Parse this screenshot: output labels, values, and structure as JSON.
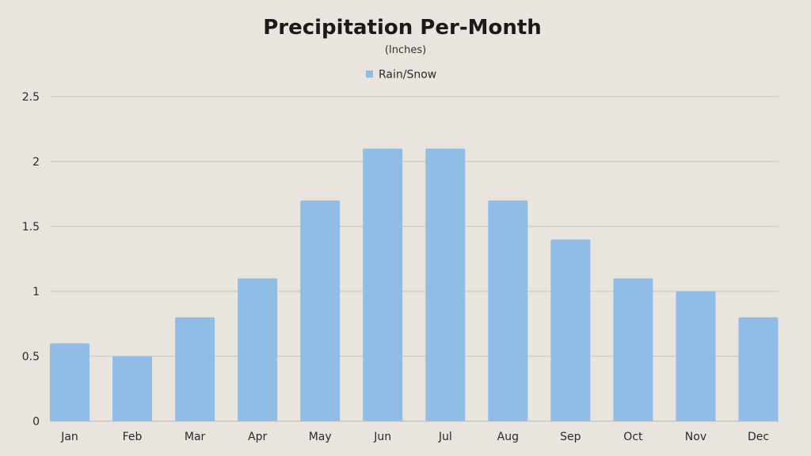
{
  "chart_data": {
    "type": "bar",
    "title": "Precipitation Per-Month",
    "subtitle": "(Inches)",
    "xlabel": "",
    "ylabel": "",
    "categories": [
      "Jan",
      "Feb",
      "Mar",
      "Apr",
      "May",
      "Jun",
      "Jul",
      "Aug",
      "Sep",
      "Oct",
      "Nov",
      "Dec"
    ],
    "series": [
      {
        "name": "Rain/Snow",
        "values": [
          0.6,
          0.5,
          0.8,
          1.1,
          1.7,
          2.1,
          2.1,
          1.7,
          1.4,
          1.1,
          1.0,
          0.8
        ]
      }
    ],
    "ylim": [
      0,
      2.5
    ],
    "yticks": [
      0,
      0.5,
      1,
      1.5,
      2,
      2.5
    ],
    "ytick_labels": [
      "0",
      "0.5",
      "1",
      "1.5",
      "2",
      "2.5"
    ],
    "grid": true,
    "legend_position": "top-center",
    "colors": {
      "background": "#e9e4de",
      "bar": "#8fbde6",
      "grid": "#c9c4be",
      "axis": "#bdb8b2"
    }
  }
}
